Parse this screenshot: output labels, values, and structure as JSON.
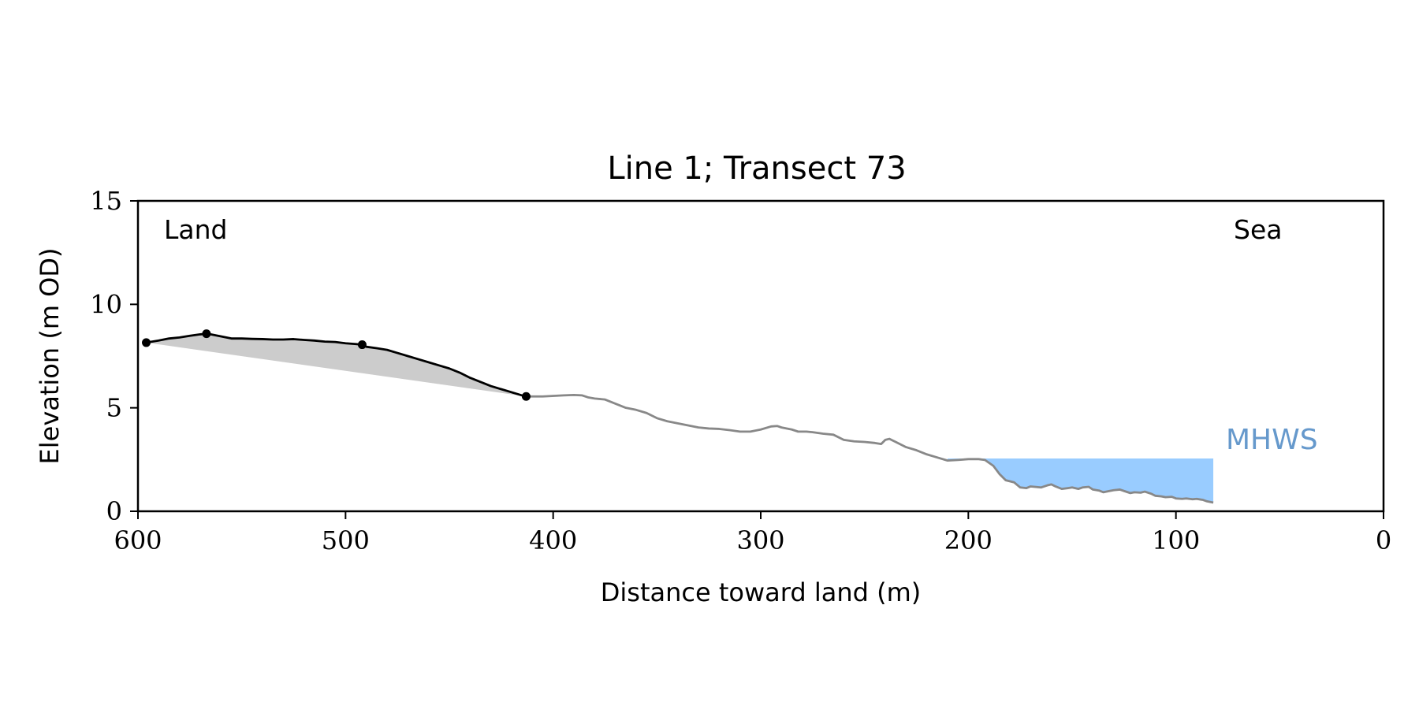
{
  "chart_data": {
    "type": "area",
    "title": "Line 1; Transect 73",
    "xlabel": "Distance toward land (m)",
    "ylabel": "Elevation (m OD)",
    "xlim": [
      600,
      0
    ],
    "ylim": [
      0,
      15
    ],
    "x_ticks": [
      600,
      500,
      400,
      300,
      200,
      100,
      0
    ],
    "y_ticks": [
      0,
      5,
      10,
      15
    ],
    "grid": false,
    "annotations": {
      "land": "Land",
      "sea": "Sea",
      "mhws": "MHWS"
    },
    "mhws_level": 2.55,
    "colors": {
      "profile": "#888888",
      "dune_line": "#000000",
      "dune_fill": "#cccccc",
      "water_fill": "#99ccff",
      "mhws_text": "#6699cc"
    },
    "profile": {
      "x": [
        413,
        405,
        395,
        390,
        386,
        383,
        380,
        375,
        370,
        365,
        360,
        355,
        350,
        345,
        340,
        335,
        330,
        325,
        320,
        315,
        310,
        305,
        300,
        295,
        292,
        290,
        285,
        282,
        278,
        275,
        270,
        265,
        262,
        260,
        255,
        250,
        245,
        242,
        240,
        238,
        235,
        230,
        225,
        220,
        215,
        210,
        205,
        200,
        195,
        192,
        188,
        185,
        182,
        178,
        175,
        172,
        170,
        168,
        165,
        162,
        160,
        158,
        155,
        152,
        150,
        147,
        145,
        142,
        140,
        137,
        135,
        132,
        130,
        127,
        125,
        122,
        120,
        117,
        115,
        112,
        110,
        107,
        105,
        102,
        100,
        97,
        95,
        92,
        90,
        87,
        85,
        82
      ],
      "y": [
        5.55,
        5.55,
        5.6,
        5.62,
        5.6,
        5.5,
        5.45,
        5.4,
        5.2,
        5.0,
        4.9,
        4.75,
        4.5,
        4.35,
        4.25,
        4.15,
        4.05,
        4.0,
        3.98,
        3.92,
        3.85,
        3.85,
        3.95,
        4.1,
        4.12,
        4.05,
        3.95,
        3.85,
        3.85,
        3.82,
        3.75,
        3.7,
        3.55,
        3.45,
        3.38,
        3.35,
        3.3,
        3.25,
        3.45,
        3.5,
        3.35,
        3.1,
        2.95,
        2.75,
        2.6,
        2.45,
        2.48,
        2.52,
        2.52,
        2.48,
        2.2,
        1.8,
        1.5,
        1.4,
        1.15,
        1.12,
        1.2,
        1.18,
        1.15,
        1.25,
        1.3,
        1.2,
        1.08,
        1.12,
        1.15,
        1.08,
        1.15,
        1.18,
        1.05,
        1.0,
        0.92,
        0.98,
        1.02,
        1.05,
        0.98,
        0.88,
        0.92,
        0.9,
        0.95,
        0.85,
        0.75,
        0.72,
        0.68,
        0.7,
        0.62,
        0.6,
        0.62,
        0.58,
        0.6,
        0.55,
        0.48,
        0.42
      ]
    },
    "dune_crest": {
      "x": [
        596,
        590,
        585,
        580,
        575,
        570,
        567,
        565,
        560,
        555,
        550,
        545,
        540,
        535,
        530,
        525,
        520,
        515,
        510,
        505,
        500,
        495,
        492,
        490,
        485,
        480,
        475,
        470,
        465,
        460,
        455,
        450,
        445,
        440,
        435,
        430,
        425,
        420,
        415,
        413
      ],
      "y": [
        8.15,
        8.25,
        8.35,
        8.4,
        8.48,
        8.55,
        8.58,
        8.55,
        8.45,
        8.35,
        8.35,
        8.33,
        8.32,
        8.3,
        8.3,
        8.32,
        8.28,
        8.25,
        8.2,
        8.18,
        8.12,
        8.08,
        8.05,
        7.95,
        7.88,
        7.8,
        7.65,
        7.5,
        7.35,
        7.2,
        7.05,
        6.9,
        6.7,
        6.45,
        6.25,
        6.05,
        5.9,
        5.75,
        5.6,
        5.55
      ]
    },
    "dune_markers": {
      "x": [
        596,
        567,
        492,
        413
      ],
      "y": [
        8.15,
        8.58,
        8.05,
        5.55
      ]
    }
  }
}
